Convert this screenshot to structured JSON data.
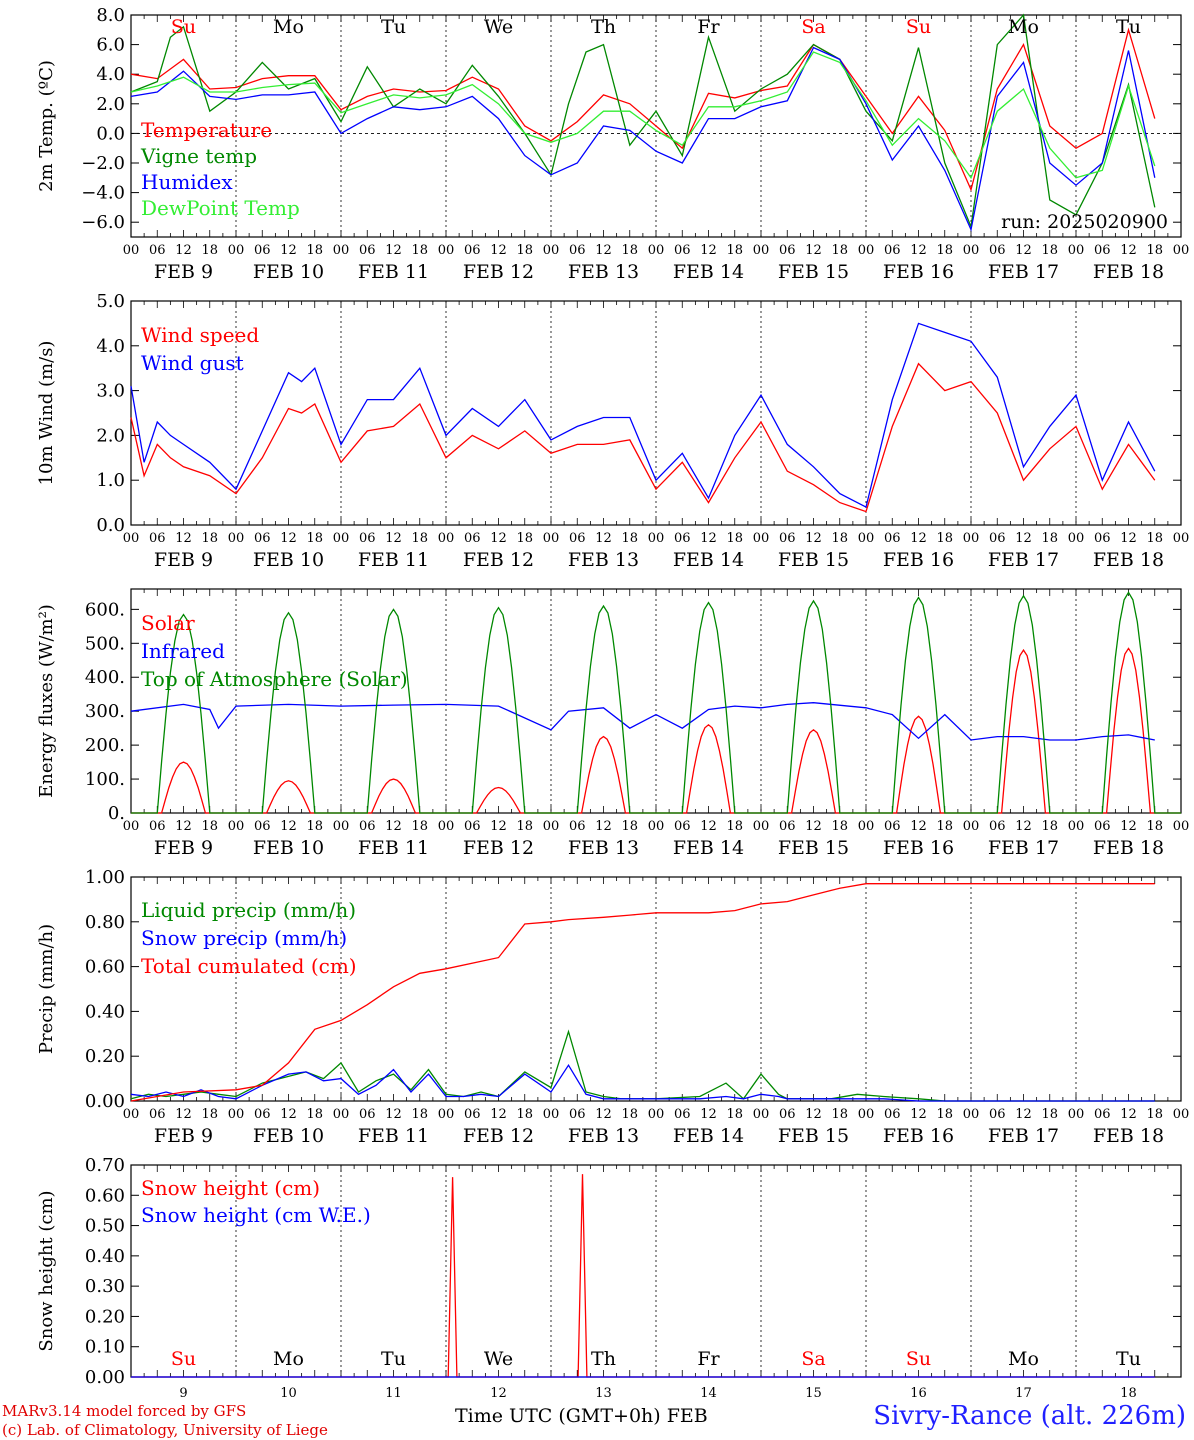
{
  "run_label": "run: 2025020900",
  "footer": {
    "credit_line1": "MARv3.14 model forced by GFS",
    "credit_line2": "(c) Lab. of Climatology, University of Liege",
    "xaxis_title": "Time UTC (GMT+0h)",
    "month_label": "FEB",
    "station": "Sivry-Rance (alt. 226m)"
  },
  "hour_ticks": [
    "00",
    "06",
    "12",
    "18"
  ],
  "day_dates": [
    "FEB  9",
    "FEB 10",
    "FEB 11",
    "FEB 12",
    "FEB 13",
    "FEB 14",
    "FEB 15",
    "FEB 16",
    "FEB 17",
    "FEB 18"
  ],
  "day_numbers": [
    "9",
    "10",
    "11",
    "12",
    "13",
    "14",
    "15",
    "16",
    "17",
    "18"
  ],
  "weekdays": [
    "Su",
    "Mo",
    "Tu",
    "We",
    "Th",
    "Fr",
    "Sa",
    "Su",
    "Mo",
    "Tu"
  ],
  "colors": {
    "red": "#ff0000",
    "green": "#008800",
    "blue": "#0000ff",
    "lightgreen": "#33ee33",
    "weekend": "#ff0000",
    "weekday": "#000000"
  },
  "chart_data": [
    {
      "type": "line",
      "ylabel": "2m Temp. (ºC)",
      "ylim": [
        -7,
        8
      ],
      "yticks": [
        "8.0",
        "6.0",
        "4.0",
        "2.0",
        "0.0",
        "−2.0",
        "−4.0",
        "−6.0"
      ],
      "ytick_values": [
        8,
        6,
        4,
        2,
        0,
        -2,
        -4,
        -6
      ],
      "zero_line": true,
      "x_unit": "hours since Feb 9 00 UTC",
      "series": [
        {
          "name": "Temperature",
          "color": "#ff0000",
          "x": [
            0,
            6,
            12,
            18,
            24,
            30,
            36,
            42,
            48,
            54,
            60,
            66,
            72,
            78,
            84,
            90,
            96,
            102,
            108,
            114,
            120,
            126,
            132,
            138,
            144,
            150,
            156,
            162,
            168,
            174,
            180,
            186,
            192,
            198,
            204,
            210,
            216,
            222,
            228,
            234
          ],
          "y": [
            4.0,
            3.7,
            5.0,
            3.0,
            3.1,
            3.7,
            3.9,
            3.9,
            1.6,
            2.5,
            3.0,
            2.8,
            2.9,
            3.8,
            3.0,
            0.5,
            -0.5,
            0.8,
            2.6,
            2.0,
            0.5,
            -1.0,
            2.7,
            2.4,
            2.9,
            3.2,
            6.0,
            5.0,
            2.5,
            0.0,
            2.5,
            0.2,
            -3.8,
            3.0,
            6.0,
            0.5,
            -1.0,
            0.0,
            7.0,
            1.0
          ]
        },
        {
          "name": "Vigne temp",
          "color": "#008800",
          "x": [
            0,
            6,
            9,
            12,
            18,
            24,
            30,
            36,
            42,
            48,
            54,
            60,
            66,
            72,
            78,
            84,
            90,
            96,
            100,
            104,
            108,
            114,
            120,
            126,
            132,
            138,
            144,
            150,
            156,
            162,
            168,
            174,
            180,
            186,
            192,
            198,
            204,
            210,
            216,
            222,
            228,
            234
          ],
          "y": [
            2.8,
            3.5,
            6.5,
            7.2,
            1.5,
            2.8,
            4.8,
            3.0,
            3.7,
            0.8,
            4.5,
            1.8,
            3.0,
            2.0,
            4.6,
            2.5,
            0.0,
            -2.8,
            2.0,
            5.5,
            6.0,
            -0.8,
            1.5,
            -1.5,
            6.5,
            1.5,
            3.0,
            4.0,
            6.0,
            5.0,
            1.5,
            -0.5,
            5.8,
            -2.0,
            -6.3,
            6.0,
            8.0,
            -4.5,
            -5.5,
            -2.0,
            3.3,
            -5.0
          ]
        },
        {
          "name": "Humidex",
          "color": "#0000ff",
          "x": [
            0,
            6,
            12,
            18,
            24,
            30,
            36,
            42,
            48,
            54,
            60,
            66,
            72,
            78,
            84,
            90,
            96,
            102,
            108,
            114,
            120,
            126,
            132,
            138,
            144,
            150,
            156,
            162,
            168,
            174,
            180,
            186,
            192,
            198,
            204,
            210,
            216,
            222,
            228,
            234
          ],
          "y": [
            2.5,
            2.8,
            4.2,
            2.5,
            2.3,
            2.6,
            2.6,
            2.8,
            0.0,
            1.0,
            1.8,
            1.6,
            1.8,
            2.5,
            1.0,
            -1.5,
            -2.8,
            -2.0,
            0.5,
            0.2,
            -1.2,
            -2.0,
            1.0,
            1.0,
            1.8,
            2.2,
            5.8,
            5.0,
            2.0,
            -1.8,
            0.5,
            -2.5,
            -6.5,
            2.5,
            4.8,
            -2.0,
            -3.5,
            -2.0,
            5.6,
            -3.0
          ]
        },
        {
          "name": "DewPoint Temp",
          "color": "#33ee33",
          "x": [
            0,
            6,
            12,
            18,
            24,
            30,
            36,
            42,
            48,
            54,
            60,
            66,
            72,
            78,
            84,
            90,
            96,
            102,
            108,
            114,
            120,
            126,
            132,
            138,
            144,
            150,
            156,
            162,
            168,
            174,
            180,
            186,
            192,
            198,
            204,
            210,
            216,
            222,
            228,
            234
          ],
          "y": [
            2.8,
            3.2,
            3.8,
            2.8,
            2.8,
            3.1,
            3.3,
            3.4,
            1.4,
            2.0,
            2.6,
            2.4,
            2.6,
            3.3,
            2.0,
            0.0,
            -0.6,
            0.0,
            1.5,
            1.5,
            0.2,
            -0.8,
            1.8,
            1.8,
            2.2,
            2.8,
            5.5,
            4.8,
            2.2,
            -0.8,
            1.0,
            -0.5,
            -3.0,
            1.5,
            3.0,
            -1.0,
            -3.0,
            -2.5,
            3.2,
            -2.2
          ]
        }
      ]
    },
    {
      "type": "line",
      "ylabel": "10m Wind (m/s)",
      "ylim": [
        0,
        5
      ],
      "yticks": [
        "5.0",
        "4.0",
        "3.0",
        "2.0",
        "1.0",
        "0.0"
      ],
      "ytick_values": [
        5,
        4,
        3,
        2,
        1,
        0
      ],
      "series": [
        {
          "name": "Wind speed",
          "color": "#ff0000",
          "x": [
            0,
            3,
            6,
            9,
            12,
            18,
            24,
            30,
            36,
            39,
            42,
            48,
            54,
            60,
            66,
            72,
            78,
            84,
            90,
            96,
            102,
            108,
            114,
            120,
            126,
            132,
            138,
            144,
            150,
            156,
            162,
            168,
            174,
            180,
            186,
            192,
            198,
            204,
            210,
            216,
            222,
            228,
            234
          ],
          "y": [
            2.4,
            1.1,
            1.8,
            1.5,
            1.3,
            1.1,
            0.7,
            1.5,
            2.6,
            2.5,
            2.7,
            1.4,
            2.1,
            2.2,
            2.7,
            1.5,
            2.0,
            1.7,
            2.1,
            1.6,
            1.8,
            1.8,
            1.9,
            0.8,
            1.4,
            0.5,
            1.5,
            2.3,
            1.2,
            0.9,
            0.5,
            0.3,
            2.2,
            3.6,
            3.0,
            3.2,
            2.5,
            1.0,
            1.7,
            2.2,
            0.8,
            1.8,
            1.0
          ]
        },
        {
          "name": "Wind gust",
          "color": "#0000ff",
          "x": [
            0,
            3,
            6,
            9,
            12,
            18,
            24,
            30,
            36,
            39,
            42,
            48,
            54,
            60,
            66,
            72,
            78,
            84,
            90,
            96,
            102,
            108,
            114,
            120,
            126,
            132,
            138,
            144,
            150,
            156,
            162,
            168,
            174,
            180,
            186,
            192,
            198,
            204,
            210,
            216,
            222,
            228,
            234
          ],
          "y": [
            3.1,
            1.4,
            2.3,
            2.0,
            1.8,
            1.4,
            0.8,
            2.1,
            3.4,
            3.2,
            3.5,
            1.8,
            2.8,
            2.8,
            3.5,
            2.0,
            2.6,
            2.2,
            2.8,
            1.9,
            2.2,
            2.4,
            2.4,
            1.0,
            1.6,
            0.6,
            2.0,
            2.9,
            1.8,
            1.3,
            0.7,
            0.4,
            2.8,
            4.5,
            4.3,
            4.1,
            3.3,
            1.3,
            2.2,
            2.9,
            1.0,
            2.3,
            1.2
          ]
        }
      ]
    },
    {
      "type": "line",
      "ylabel": "Energy fluxes (W/m²)",
      "ylim": [
        0,
        660
      ],
      "yticks": [
        "600.",
        "500.",
        "400.",
        "300.",
        "200.",
        "100.",
        "0."
      ],
      "ytick_values": [
        600,
        500,
        400,
        300,
        200,
        100,
        0
      ],
      "series": [
        {
          "name": "Solar",
          "color": "#ff0000",
          "kind": "diurnal",
          "peaks": [
            150,
            95,
            100,
            75,
            225,
            260,
            245,
            285,
            480,
            485
          ],
          "sunrise_h": 7.0,
          "sunset_h": 17.0
        },
        {
          "name": "Infrared",
          "color": "#0000ff",
          "x": [
            0,
            12,
            18,
            20,
            24,
            36,
            48,
            60,
            72,
            84,
            96,
            100,
            108,
            114,
            120,
            126,
            132,
            138,
            144,
            150,
            156,
            168,
            174,
            180,
            186,
            192,
            198,
            204,
            210,
            216,
            222,
            228,
            234
          ],
          "y": [
            300,
            320,
            305,
            250,
            315,
            320,
            315,
            318,
            320,
            315,
            245,
            300,
            310,
            250,
            290,
            250,
            305,
            315,
            310,
            320,
            325,
            310,
            290,
            220,
            290,
            215,
            225,
            225,
            215,
            215,
            225,
            230,
            215
          ]
        },
        {
          "name": "Top of Atmosphere (Solar)",
          "color": "#008800",
          "kind": "diurnal",
          "peaks": [
            585,
            590,
            600,
            605,
            610,
            620,
            625,
            635,
            640,
            650
          ],
          "sunrise_h": 6.0,
          "sunset_h": 18.0
        }
      ]
    },
    {
      "type": "line",
      "ylabel": "Precip (mm/h)",
      "ylim": [
        0,
        1.0
      ],
      "yticks": [
        "1.00",
        "0.80",
        "0.60",
        "0.40",
        "0.20",
        "0.00"
      ],
      "ytick_values": [
        1.0,
        0.8,
        0.6,
        0.4,
        0.2,
        0.0
      ],
      "series": [
        {
          "name": "Liquid precip (mm/h)",
          "color": "#008800",
          "x": [
            0,
            4,
            8,
            12,
            16,
            20,
            24,
            30,
            36,
            40,
            44,
            48,
            52,
            56,
            60,
            64,
            68,
            72,
            76,
            80,
            84,
            90,
            96,
            100,
            104,
            108,
            112,
            116,
            120,
            130,
            136,
            140,
            144,
            148,
            150,
            160,
            166,
            172,
            180,
            186,
            190,
            196,
            204,
            212,
            220,
            228,
            234
          ],
          "y": [
            0.01,
            0.03,
            0.02,
            0.03,
            0.04,
            0.03,
            0.02,
            0.08,
            0.11,
            0.13,
            0.1,
            0.17,
            0.04,
            0.09,
            0.12,
            0.05,
            0.14,
            0.03,
            0.02,
            0.04,
            0.02,
            0.13,
            0.06,
            0.31,
            0.04,
            0.02,
            0.01,
            0.01,
            0.01,
            0.02,
            0.08,
            0.01,
            0.12,
            0.03,
            0.01,
            0.01,
            0.03,
            0.02,
            0.01,
            0.0,
            0.0,
            0.0,
            0.0,
            0.0,
            0.0,
            0.0,
            0.0
          ]
        },
        {
          "name": "Snow precip (mm/h)",
          "color": "#0000ff",
          "x": [
            0,
            4,
            8,
            12,
            16,
            20,
            24,
            30,
            36,
            40,
            44,
            48,
            52,
            56,
            60,
            64,
            68,
            72,
            76,
            80,
            84,
            90,
            96,
            100,
            104,
            108,
            112,
            116,
            120,
            130,
            136,
            140,
            144,
            148,
            150,
            160,
            166,
            172,
            180,
            186,
            190,
            196,
            204,
            212,
            220,
            228,
            234
          ],
          "y": [
            0.03,
            0.02,
            0.04,
            0.02,
            0.05,
            0.02,
            0.01,
            0.07,
            0.12,
            0.13,
            0.09,
            0.1,
            0.03,
            0.07,
            0.14,
            0.04,
            0.12,
            0.02,
            0.02,
            0.03,
            0.02,
            0.12,
            0.04,
            0.16,
            0.03,
            0.01,
            0.01,
            0.01,
            0.01,
            0.01,
            0.02,
            0.01,
            0.03,
            0.02,
            0.01,
            0.01,
            0.01,
            0.01,
            0.0,
            0.0,
            0.0,
            0.0,
            0.0,
            0.0,
            0.0,
            0.0,
            0.0
          ]
        },
        {
          "name": "Total cumulated (cm)",
          "color": "#ff0000",
          "x": [
            0,
            12,
            24,
            30,
            36,
            42,
            48,
            54,
            60,
            66,
            72,
            84,
            90,
            96,
            100,
            108,
            114,
            120,
            126,
            132,
            138,
            144,
            150,
            156,
            162,
            168,
            180,
            186,
            192,
            210,
            234
          ],
          "y": [
            0.0,
            0.04,
            0.05,
            0.07,
            0.17,
            0.32,
            0.36,
            0.43,
            0.51,
            0.57,
            0.59,
            0.64,
            0.79,
            0.8,
            0.81,
            0.82,
            0.83,
            0.84,
            0.84,
            0.84,
            0.85,
            0.88,
            0.89,
            0.92,
            0.95,
            0.97,
            0.97,
            0.97,
            0.97,
            0.97,
            0.97
          ]
        }
      ]
    },
    {
      "type": "line",
      "ylabel": "Snow height (cm)",
      "ylim": [
        0,
        0.7
      ],
      "yticks": [
        "0.70",
        "0.60",
        "0.50",
        "0.40",
        "0.30",
        "0.20",
        "0.10",
        "0.00"
      ],
      "ytick_values": [
        0.7,
        0.6,
        0.5,
        0.4,
        0.3,
        0.2,
        0.1,
        0.0
      ],
      "series": [
        {
          "name": "Snow height (cm)",
          "color": "#ff0000",
          "x": [
            0,
            72.5,
            73.5,
            74.5,
            102.2,
            103.2,
            104.2,
            234
          ],
          "y": [
            0,
            0,
            0.66,
            0,
            0,
            0.67,
            0,
            0
          ]
        },
        {
          "name": "Snow height (cm W.E.)",
          "color": "#0000ff",
          "x": [
            0,
            234
          ],
          "y": [
            0,
            0
          ]
        }
      ]
    }
  ]
}
